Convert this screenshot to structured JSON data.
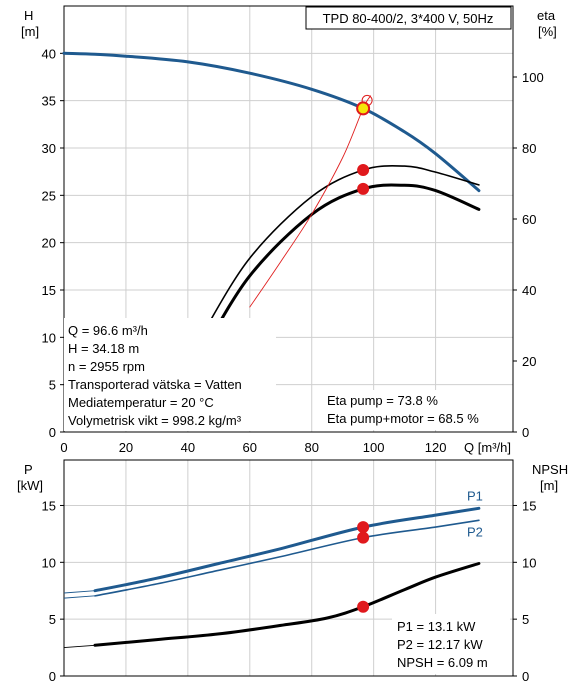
{
  "colors": {
    "blue": "#1f5a8f",
    "black": "#000000",
    "red": "#e0191d",
    "yellow": "#f5e50a",
    "thin_red": "#e02020"
  },
  "chart_data": [
    {
      "type": "line",
      "title": "TPD 80-400/2, 3*400 V, 50Hz",
      "y_left_label": "H",
      "y_left_unit": "[m]",
      "y_right_label": "eta",
      "y_right_unit": "[%]",
      "x_label": "Q [m³/h]",
      "xlim": [
        0,
        145
      ],
      "ylim_left": [
        0,
        45
      ],
      "ylim_right": [
        0,
        120
      ],
      "x_ticks": [
        "0",
        "20",
        "40",
        "60",
        "80",
        "100",
        "120"
      ],
      "y_left_ticks": [
        "0",
        "5",
        "10",
        "15",
        "20",
        "25",
        "30",
        "35",
        "40"
      ],
      "y_right_ticks": [
        "0",
        "20",
        "40",
        "60",
        "80",
        "100"
      ],
      "grid": true,
      "series": [
        {
          "axis": "left",
          "style": "head",
          "points": [
            [
              0,
              40
            ],
            [
              10,
              39.9
            ],
            [
              20,
              39.7
            ],
            [
              40,
              39.1
            ],
            [
              60,
              37.9
            ],
            [
              80,
              36.2
            ],
            [
              96.6,
              34.18
            ],
            [
              110,
              31.7
            ],
            [
              120,
              29.4
            ],
            [
              134,
              25.5
            ]
          ]
        },
        {
          "axis": "right",
          "style": "eta_pump",
          "points": [
            [
              45,
              28
            ],
            [
              60,
              49
            ],
            [
              80,
              66.3
            ],
            [
              96.6,
              73.8
            ],
            [
              110,
              74.9
            ],
            [
              120,
              73.2
            ],
            [
              134,
              69.6
            ]
          ]
        },
        {
          "axis": "right",
          "style": "eta_total",
          "points": [
            [
              45,
              22.8
            ],
            [
              60,
              44
            ],
            [
              80,
              61.3
            ],
            [
              96.6,
              68.5
            ],
            [
              110,
              69.5
            ],
            [
              120,
              68
            ],
            [
              134,
              62.7
            ]
          ]
        },
        {
          "axis": "left",
          "style": "system",
          "points": [
            [
              60,
              13.2
            ],
            [
              70,
              18
            ],
            [
              80,
              23
            ],
            [
              90,
              29
            ],
            [
              96.6,
              34.18
            ],
            [
              99,
              35.5
            ]
          ]
        }
      ],
      "operating_point": {
        "q": 96.6,
        "h": 34.18,
        "eta_pump": 73.8,
        "eta_total": 68.5
      },
      "info": [
        "Q = 96.6 m³/h",
        "H = 34.18 m",
        "n = 2955 rpm",
        "Transporterad vätska = Vatten",
        "Mediatemperatur = 20 °C",
        "Volymetrisk vikt = 998.2 kg/m³"
      ],
      "eta_info": [
        "Eta pump = 73.8 %",
        "Eta pump+motor = 68.5 %"
      ]
    },
    {
      "type": "line",
      "y_left_label": "P",
      "y_left_unit": "[kW]",
      "y_right_label": "NPSH",
      "y_right_unit": "[m]",
      "xlim": [
        0,
        145
      ],
      "ylim": [
        0,
        19
      ],
      "y_left_ticks": [
        "0",
        "5",
        "10",
        "15"
      ],
      "y_right_ticks": [
        "0",
        "5",
        "10",
        "15"
      ],
      "grid": true,
      "series": [
        {
          "name": "P1",
          "style": "p1",
          "points": [
            [
              10,
              7.5
            ],
            [
              30,
              8.6
            ],
            [
              50,
              9.9
            ],
            [
              70,
              11.2
            ],
            [
              96.6,
              13.1
            ],
            [
              120,
              14.15
            ],
            [
              134,
              14.75
            ]
          ]
        },
        {
          "name": "P2",
          "style": "p2",
          "points": [
            [
              10,
              7.05
            ],
            [
              30,
              8.1
            ],
            [
              50,
              9.3
            ],
            [
              70,
              10.5
            ],
            [
              96.6,
              12.17
            ],
            [
              120,
              13.1
            ],
            [
              134,
              13.7
            ]
          ]
        },
        {
          "style": "npsh",
          "points": [
            [
              10,
              2.7
            ],
            [
              30,
              3.2
            ],
            [
              50,
              3.7
            ],
            [
              70,
              4.45
            ],
            [
              85,
              5.1
            ],
            [
              96.6,
              6.09
            ],
            [
              110,
              7.6
            ],
            [
              120,
              8.7
            ],
            [
              134,
              9.9
            ]
          ]
        }
      ],
      "operating_point": {
        "q": 96.6,
        "p1": 13.1,
        "p2": 12.17,
        "npsh": 6.09
      },
      "info": [
        "P1 = 13.1 kW",
        "P2 = 12.17 kW",
        "NPSH = 6.09 m"
      ]
    }
  ]
}
